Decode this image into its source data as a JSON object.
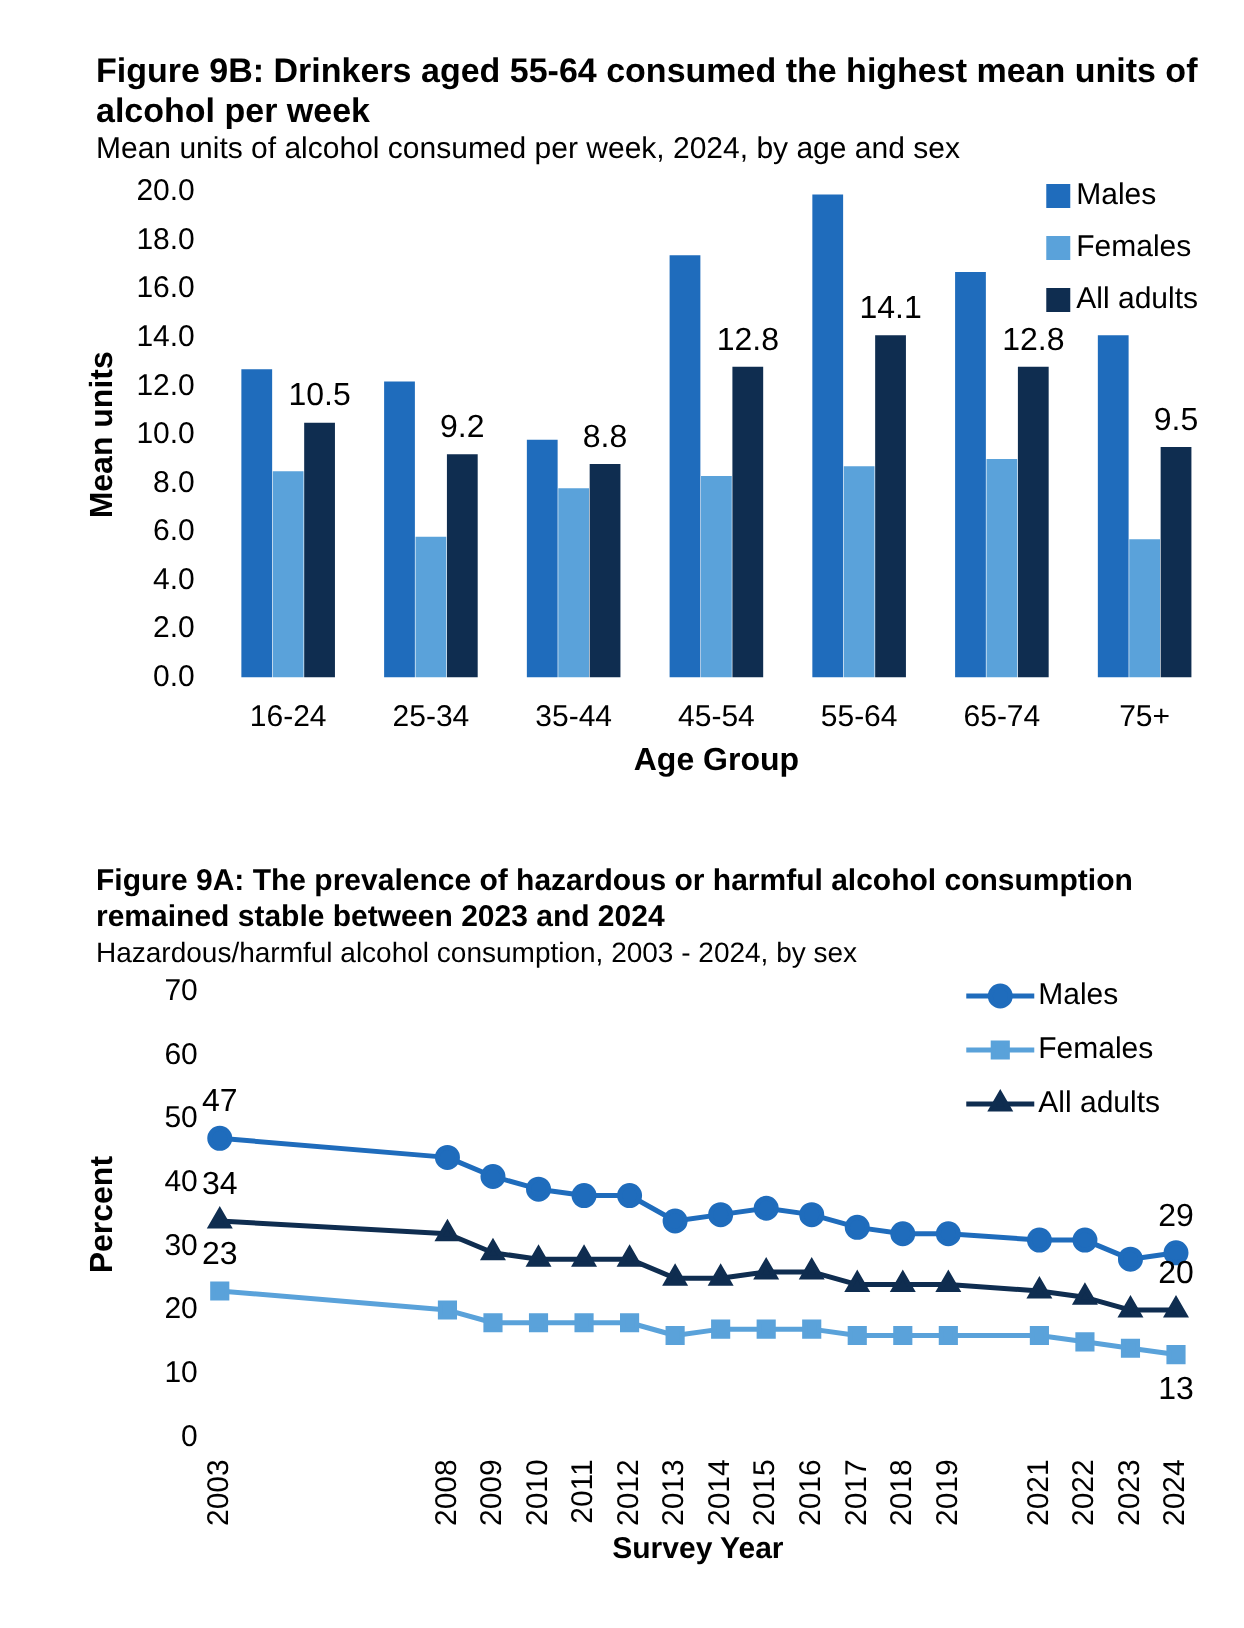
{
  "chart_data": [
    {
      "type": "bar",
      "title": "Figure 9B: Drinkers aged 55-64 consumed the highest mean units of alcohol per week",
      "subtitle": "Mean units of alcohol consumed per week, 2024, by age and sex",
      "xlabel": "Age Group",
      "ylabel": "Mean units",
      "categories": [
        "16-24",
        "25-34",
        "35-44",
        "45-54",
        "55-64",
        "65-74",
        "75+"
      ],
      "series": [
        {
          "name": "Males",
          "color": "#1f6cbc",
          "values": [
            12.7,
            12.2,
            9.8,
            17.4,
            19.9,
            16.7,
            14.1
          ]
        },
        {
          "name": "Females",
          "color": "#5aa2da",
          "values": [
            8.5,
            5.8,
            7.8,
            8.3,
            8.7,
            9.0,
            5.7
          ]
        },
        {
          "name": "All adults",
          "color": "#0f2d50",
          "values": [
            10.5,
            9.2,
            8.8,
            12.8,
            14.1,
            12.8,
            9.5
          ],
          "value_labels": [
            "10.5",
            "9.2",
            "8.8",
            "12.8",
            "14.1",
            "12.8",
            "9.5"
          ]
        }
      ],
      "ylim": [
        0,
        20
      ],
      "yticks": [
        {
          "value": 0,
          "label": "0.0"
        },
        {
          "value": 2,
          "label": "2.0"
        },
        {
          "value": 4,
          "label": "4.0"
        },
        {
          "value": 6,
          "label": "6.0"
        },
        {
          "value": 8,
          "label": "8.0"
        },
        {
          "value": 10,
          "label": "10.0"
        },
        {
          "value": 12,
          "label": "12.0"
        },
        {
          "value": 14,
          "label": "14.0"
        },
        {
          "value": 16,
          "label": "16.0"
        },
        {
          "value": 18,
          "label": "18.0"
        },
        {
          "value": 20,
          "label": "20.0"
        }
      ],
      "grid": false,
      "legend": "top right"
    },
    {
      "type": "line",
      "title": "Figure 9A: The prevalence of hazardous or harmful alcohol consumption remained stable between 2023 and 2024",
      "subtitle": "Hazardous/harmful alcohol consumption, 2003 - 2024, by sex",
      "xlabel": "Survey Year",
      "ylabel": "Percent",
      "x": [
        2003,
        2008,
        2009,
        2010,
        2011,
        2012,
        2013,
        2014,
        2015,
        2016,
        2017,
        2018,
        2019,
        2021,
        2022,
        2023,
        2024
      ],
      "series": [
        {
          "name": "Males",
          "color": "#1f6cbc",
          "marker": "circle",
          "values": [
            47,
            44,
            41,
            39,
            38,
            38,
            34,
            35,
            36,
            35,
            33,
            32,
            32,
            31,
            31,
            28,
            29
          ],
          "value_labels": [
            "47",
            null,
            null,
            null,
            null,
            null,
            null,
            null,
            null,
            null,
            null,
            null,
            null,
            null,
            null,
            null,
            "29"
          ]
        },
        {
          "name": "Females",
          "color": "#5aa2da",
          "marker": "square",
          "values": [
            23,
            20,
            18,
            18,
            18,
            18,
            16,
            17,
            17,
            17,
            16,
            16,
            16,
            16,
            15,
            14,
            13
          ],
          "value_labels": [
            "23",
            null,
            null,
            null,
            null,
            null,
            null,
            null,
            null,
            null,
            null,
            null,
            null,
            null,
            null,
            null,
            "13"
          ]
        },
        {
          "name": "All adults",
          "color": "#0f2d50",
          "marker": "triangle",
          "values": [
            34,
            32,
            29,
            28,
            28,
            28,
            25,
            25,
            26,
            26,
            24,
            24,
            24,
            23,
            22,
            20,
            20
          ],
          "value_labels": [
            "34",
            null,
            null,
            null,
            null,
            null,
            null,
            null,
            null,
            null,
            null,
            null,
            null,
            null,
            null,
            null,
            "20"
          ]
        }
      ],
      "xlim": [
        2003,
        2024
      ],
      "xticks": [
        2003,
        2008,
        2009,
        2010,
        2011,
        2012,
        2013,
        2014,
        2015,
        2016,
        2017,
        2018,
        2019,
        2021,
        2022,
        2023,
        2024
      ],
      "ylim": [
        0,
        70
      ],
      "yticks": [
        0,
        10,
        20,
        30,
        40,
        50,
        60,
        70
      ],
      "grid": false,
      "legend": "top right"
    }
  ]
}
